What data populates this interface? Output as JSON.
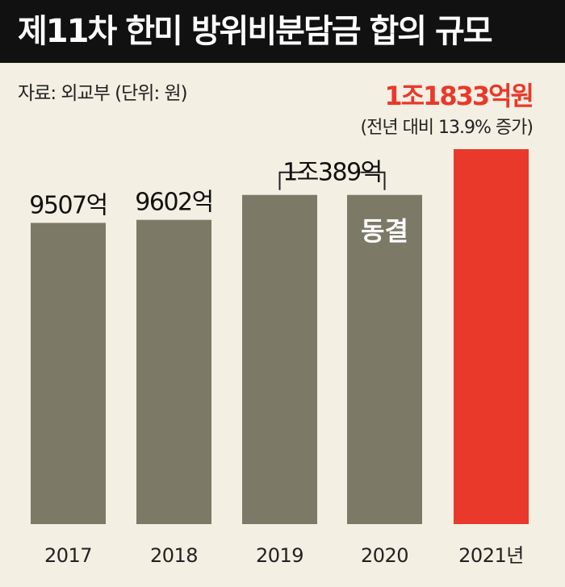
{
  "title": "제11차 한미 방위비분담금 합의 규모",
  "source": "자료: 외교부 (단위: 원)",
  "highlight": {
    "value": "1조1833억원",
    "note": "(전년 대비 13.9% 증가)"
  },
  "chart_data": {
    "type": "bar",
    "categories": [
      "2017",
      "2018",
      "2019",
      "2020",
      "2021년"
    ],
    "values": [
      9507,
      9602,
      10389,
      10389,
      11833
    ],
    "value_labels": [
      "9507억",
      "9602억",
      "1조389억",
      "",
      ""
    ],
    "bar_notes": [
      "",
      "",
      "",
      "동결",
      ""
    ],
    "bracket_label_index": 2,
    "ylim": [
      0,
      12800
    ],
    "colors": {
      "normal": "#7c7a67",
      "highlight": "#e8392b"
    },
    "highlight_index": 4,
    "grid": false
  }
}
